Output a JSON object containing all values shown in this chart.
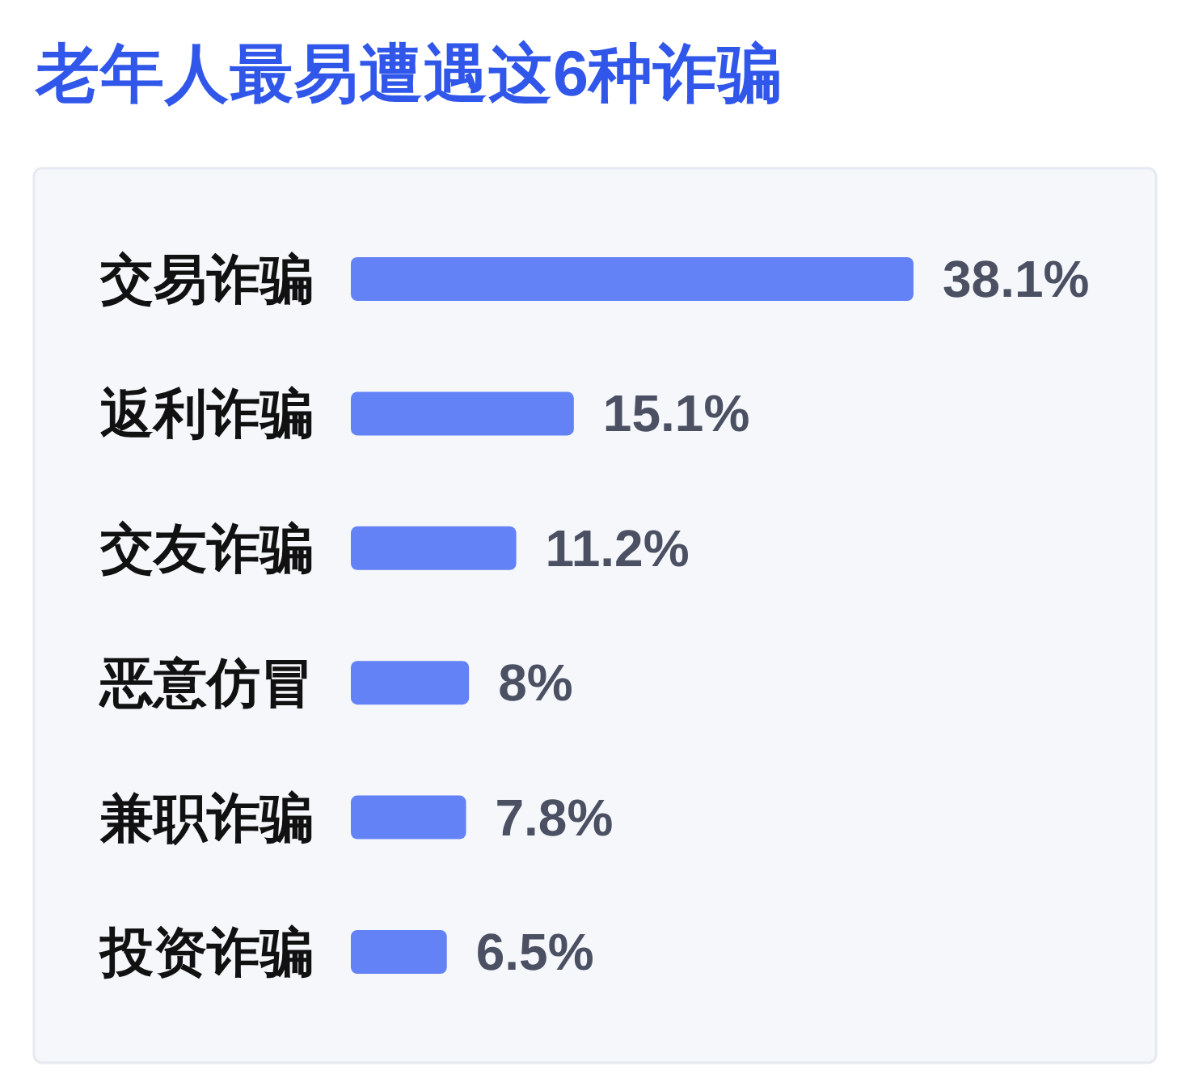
{
  "chart_data": {
    "type": "bar",
    "orientation": "horizontal",
    "title": "老年人最易遭遇这6种诈骗",
    "categories": [
      "交易诈骗",
      "返利诈骗",
      "交友诈骗",
      "恶意仿冒",
      "兼职诈骗",
      "投资诈骗"
    ],
    "values": [
      38.1,
      15.1,
      11.2,
      8,
      7.8,
      6.5
    ],
    "value_labels": [
      "38.1%",
      "15.1%",
      "11.2%",
      "8%",
      "7.8%",
      "6.5%"
    ],
    "color": "#6382f5"
  }
}
